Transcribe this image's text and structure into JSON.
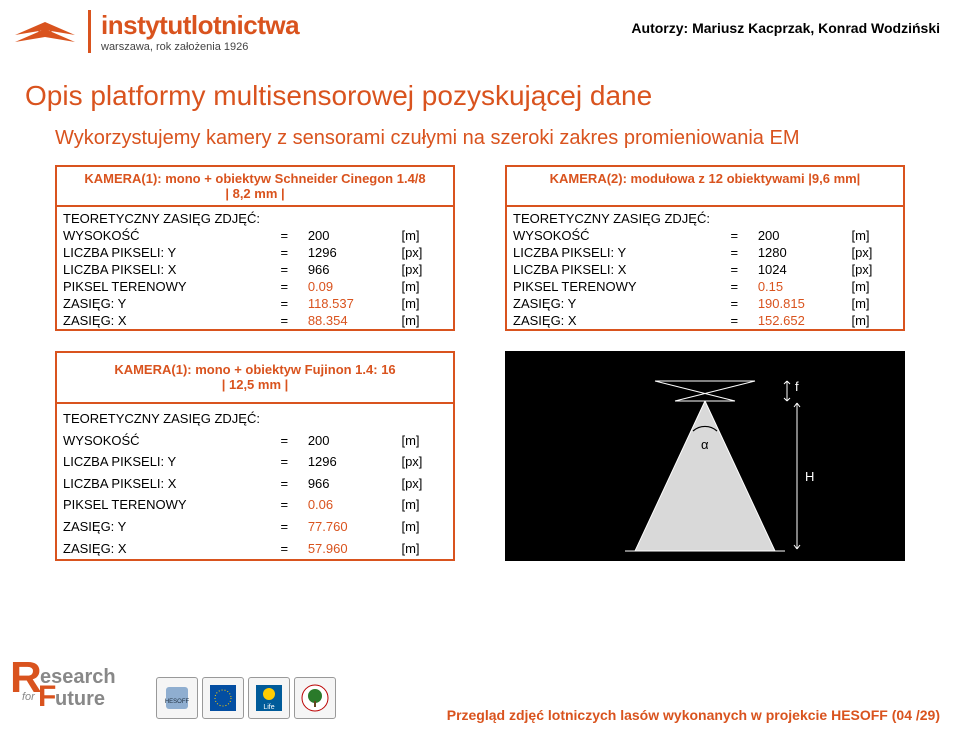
{
  "header": {
    "logo_title": "instytutlotnictwa",
    "logo_sub": "warszawa, rok założenia 1926",
    "authors": "Autorzy: Mariusz Kacprzak, Konrad Wodziński"
  },
  "main_title": "Opis platformy multisensorowej pozyskującej dane",
  "subtitle": "Wykorzystujemy kamery z sensorami czułymi na szeroki zakres promieniowania EM",
  "cam1": {
    "title_l1": "KAMERA(1): mono + obiektyw Schneider Cinegon 1.4/8",
    "title_l2": "| 8,2 mm |",
    "section": "TEORETYCZNY ZASIĘG ZDJĘĆ:",
    "rows": [
      {
        "label": "WYSOKOŚĆ",
        "eq": "=",
        "val": "200",
        "unit": "[m]"
      },
      {
        "label": "LICZBA PIKSELI: Y",
        "eq": "=",
        "val": "1296",
        "unit": "[px]"
      },
      {
        "label": "LICZBA PIKSELI: X",
        "eq": "=",
        "val": "966",
        "unit": "[px]"
      },
      {
        "label": "PIKSEL TERENOWY",
        "eq": "=",
        "val": "0.09",
        "unit": "[m]",
        "red": true
      },
      {
        "label": "ZASIĘG: Y",
        "eq": "=",
        "val": "118.537",
        "unit": "[m]",
        "red": true
      },
      {
        "label": "ZASIĘG: X",
        "eq": "=",
        "val": "88.354",
        "unit": "[m]",
        "red": true
      }
    ]
  },
  "cam2": {
    "title_l1": "KAMERA(2): modułowa z 12 obiektywami |9,6 mm|",
    "section": "TEORETYCZNY ZASIĘG ZDJĘĆ:",
    "rows": [
      {
        "label": "WYSOKOŚĆ",
        "eq": "=",
        "val": "200",
        "unit": "[m]"
      },
      {
        "label": "LICZBA PIKSELI: Y",
        "eq": "=",
        "val": "1280",
        "unit": "[px]"
      },
      {
        "label": "LICZBA PIKSELI: X",
        "eq": "=",
        "val": "1024",
        "unit": "[px]"
      },
      {
        "label": "PIKSEL TERENOWY",
        "eq": "=",
        "val": "0.15",
        "unit": "[m]",
        "red": true
      },
      {
        "label": "ZASIĘG: Y",
        "eq": "=",
        "val": "190.815",
        "unit": "[m]",
        "red": true
      },
      {
        "label": "ZASIĘG: X",
        "eq": "=",
        "val": "152.652",
        "unit": "[m]",
        "red": true
      }
    ]
  },
  "cam3": {
    "title_l1": "KAMERA(1): mono + obiektyw Fujinon 1.4: 16",
    "title_l2": "| 12,5 mm |",
    "section": "TEORETYCZNY ZASIĘG ZDJĘĆ:",
    "rows": [
      {
        "label": "WYSOKOŚĆ",
        "eq": "=",
        "val": "200",
        "unit": "[m]"
      },
      {
        "label": "LICZBA PIKSELI: Y",
        "eq": "=",
        "val": "1296",
        "unit": "[px]"
      },
      {
        "label": "LICZBA PIKSELI: X",
        "eq": "=",
        "val": "966",
        "unit": "[px]"
      },
      {
        "label": "PIKSEL TERENOWY",
        "eq": "=",
        "val": "0.06",
        "unit": "[m]",
        "red": true
      },
      {
        "label": "ZASIĘG: Y",
        "eq": "=",
        "val": "77.760",
        "unit": "[m]",
        "red": true
      },
      {
        "label": "ZASIĘG: X",
        "eq": "=",
        "val": "57.960",
        "unit": "[m]",
        "red": true
      }
    ]
  },
  "diagram": {
    "f_label": "f",
    "alpha_label": "α",
    "h_label": "H",
    "colors": {
      "bg": "#000000",
      "line": "#ffffff",
      "text": "#ffffff"
    }
  },
  "footer": {
    "r_text1": "esearch",
    "r_for": "for",
    "r_text2": "uture",
    "text": "Przegląd zdjęć lotniczych lasów wykonanych w projekcie HESOFF (04 /29)"
  },
  "colors": {
    "accent": "#d9531e",
    "text": "#000000"
  }
}
